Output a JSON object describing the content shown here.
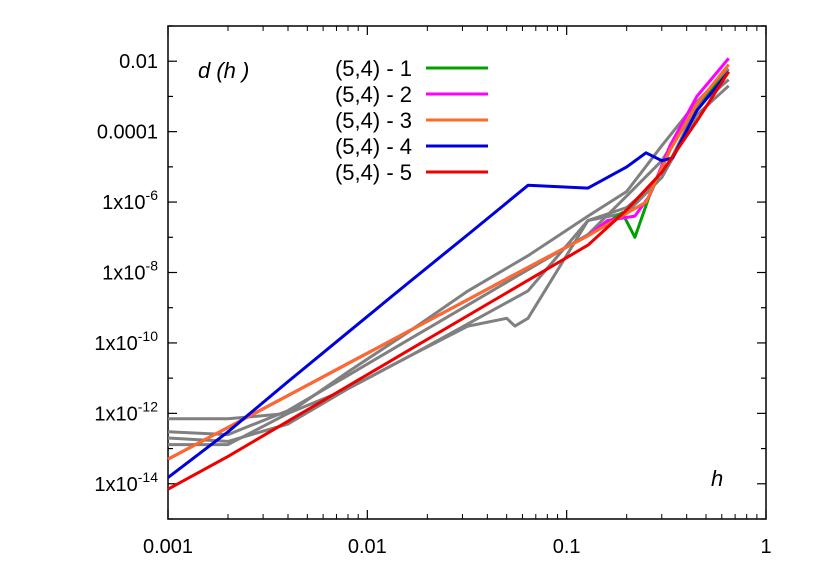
{
  "chart_data": {
    "type": "line",
    "title": "",
    "xlabel": "h",
    "ylabel": "d (h )",
    "x_scale": "log",
    "y_scale": "log",
    "xlim": [
      0.001,
      1
    ],
    "ylim": [
      1e-15,
      0.1
    ],
    "x_ticks": [
      {
        "value": 0.001,
        "label": "0.001"
      },
      {
        "value": 0.01,
        "label": "0.01"
      },
      {
        "value": 0.1,
        "label": "0.1"
      },
      {
        "value": 1,
        "label": "1"
      }
    ],
    "y_ticks": [
      {
        "value": 1e-14,
        "base": "1x10",
        "exp": "-14"
      },
      {
        "value": 1e-12,
        "base": "1x10",
        "exp": "-12"
      },
      {
        "value": 1e-10,
        "base": "1x10",
        "exp": "-10"
      },
      {
        "value": 1e-08,
        "base": "1x10",
        "exp": "-8"
      },
      {
        "value": 1e-06,
        "base": "1x10",
        "exp": "-6"
      },
      {
        "value": 0.0001,
        "base": "0.0001",
        "exp": ""
      },
      {
        "value": 0.01,
        "base": "0.01",
        "exp": ""
      }
    ],
    "grid": false,
    "legend_position": "top-left",
    "background_series_color": "#808080",
    "background_series": [
      {
        "points": [
          [
            0.001,
            7e-13
          ],
          [
            0.002,
            7e-13
          ],
          [
            0.004,
            1e-12
          ],
          [
            0.008,
            5e-12
          ],
          [
            0.016,
            4e-11
          ],
          [
            0.032,
            3.5e-10
          ],
          [
            0.064,
            3e-09
          ],
          [
            0.128,
            3e-07
          ],
          [
            0.2,
            7e-07
          ],
          [
            0.3,
            5e-06
          ],
          [
            0.45,
            0.0005
          ],
          [
            0.65,
            0.003
          ]
        ]
      },
      {
        "points": [
          [
            0.001,
            3e-13
          ],
          [
            0.002,
            2.5e-13
          ],
          [
            0.004,
            1.2e-12
          ],
          [
            0.008,
            1.2e-11
          ],
          [
            0.016,
            1.2e-10
          ],
          [
            0.032,
            1.2e-09
          ],
          [
            0.064,
            1.2e-08
          ],
          [
            0.128,
            1.2e-07
          ],
          [
            0.2,
            1.5e-06
          ],
          [
            0.3,
            1.5e-05
          ],
          [
            0.45,
            0.0005
          ],
          [
            0.65,
            0.005
          ]
        ]
      },
      {
        "points": [
          [
            0.001,
            2e-13
          ],
          [
            0.002,
            1.6e-13
          ],
          [
            0.004,
            5e-13
          ],
          [
            0.008,
            5e-12
          ],
          [
            0.016,
            4e-11
          ],
          [
            0.032,
            3e-10
          ],
          [
            0.05,
            5e-10
          ],
          [
            0.055,
            3e-10
          ],
          [
            0.064,
            5e-10
          ],
          [
            0.128,
            3e-07
          ],
          [
            0.2,
            5e-07
          ],
          [
            0.3,
            5e-06
          ],
          [
            0.45,
            0.0003
          ],
          [
            0.65,
            0.002
          ]
        ]
      },
      {
        "points": [
          [
            0.001,
            1.3e-13
          ],
          [
            0.002,
            1.3e-13
          ],
          [
            0.004,
            1e-12
          ],
          [
            0.008,
            1.5e-11
          ],
          [
            0.016,
            2e-10
          ],
          [
            0.032,
            3e-09
          ],
          [
            0.064,
            3e-08
          ],
          [
            0.128,
            4e-07
          ],
          [
            0.2,
            2e-06
          ],
          [
            0.3,
            4e-05
          ],
          [
            0.45,
            0.0007
          ],
          [
            0.65,
            0.006
          ]
        ]
      }
    ],
    "series": [
      {
        "name": "(5,4) - 1",
        "color": "#00a000",
        "points": [
          [
            0.001,
            5e-14
          ],
          [
            0.002,
            4e-13
          ],
          [
            0.004,
            3.2e-12
          ],
          [
            0.008,
            2.6e-11
          ],
          [
            0.016,
            2.1e-10
          ],
          [
            0.032,
            1.7e-09
          ],
          [
            0.064,
            1.4e-08
          ],
          [
            0.128,
            1.1e-07
          ],
          [
            0.19,
            5e-07
          ],
          [
            0.22,
            1e-07
          ],
          [
            0.26,
            1.5e-06
          ],
          [
            0.33,
            3e-05
          ],
          [
            0.45,
            0.0006
          ],
          [
            0.65,
            0.005
          ]
        ]
      },
      {
        "name": "(5,4) - 2",
        "color": "#ff00ff",
        "points": [
          [
            0.001,
            5e-14
          ],
          [
            0.002,
            4e-13
          ],
          [
            0.004,
            3.2e-12
          ],
          [
            0.008,
            2.6e-11
          ],
          [
            0.016,
            2.1e-10
          ],
          [
            0.032,
            1.7e-09
          ],
          [
            0.064,
            1.4e-08
          ],
          [
            0.128,
            1.1e-07
          ],
          [
            0.16,
            3e-07
          ],
          [
            0.22,
            4e-07
          ],
          [
            0.26,
            1.5e-06
          ],
          [
            0.33,
            4e-05
          ],
          [
            0.45,
            0.001
          ],
          [
            0.65,
            0.012
          ]
        ]
      },
      {
        "name": "(5,4) - 3",
        "color": "#ff6a2a",
        "points": [
          [
            0.001,
            5e-14
          ],
          [
            0.002,
            4e-13
          ],
          [
            0.004,
            3.2e-12
          ],
          [
            0.008,
            2.6e-11
          ],
          [
            0.016,
            2.1e-10
          ],
          [
            0.032,
            1.7e-09
          ],
          [
            0.064,
            1.4e-08
          ],
          [
            0.128,
            1.1e-07
          ],
          [
            0.25,
            1e-06
          ],
          [
            0.33,
            3e-05
          ],
          [
            0.45,
            0.0006
          ],
          [
            0.65,
            0.008
          ]
        ]
      },
      {
        "name": "(5,4) - 4",
        "color": "#0000dd",
        "points": [
          [
            0.001,
            1.5e-14
          ],
          [
            0.002,
            3e-13
          ],
          [
            0.004,
            8e-12
          ],
          [
            0.008,
            2e-10
          ],
          [
            0.016,
            5e-09
          ],
          [
            0.032,
            1.2e-07
          ],
          [
            0.064,
            3e-06
          ],
          [
            0.128,
            2.5e-06
          ],
          [
            0.2,
            1e-05
          ],
          [
            0.25,
            2.5e-05
          ],
          [
            0.3,
            1.5e-05
          ],
          [
            0.34,
            1.8e-05
          ],
          [
            0.45,
            0.0004
          ],
          [
            0.65,
            0.005
          ]
        ]
      },
      {
        "name": "(5,4) - 5",
        "color": "#ee0000",
        "points": [
          [
            0.001,
            7e-15
          ],
          [
            0.002,
            6e-14
          ],
          [
            0.004,
            6e-13
          ],
          [
            0.008,
            6e-12
          ],
          [
            0.016,
            6e-11
          ],
          [
            0.032,
            6e-10
          ],
          [
            0.064,
            6e-09
          ],
          [
            0.128,
            6e-08
          ],
          [
            0.2,
            6e-07
          ],
          [
            0.3,
            7e-06
          ],
          [
            0.45,
            0.0002
          ],
          [
            0.65,
            0.005
          ]
        ]
      }
    ]
  }
}
